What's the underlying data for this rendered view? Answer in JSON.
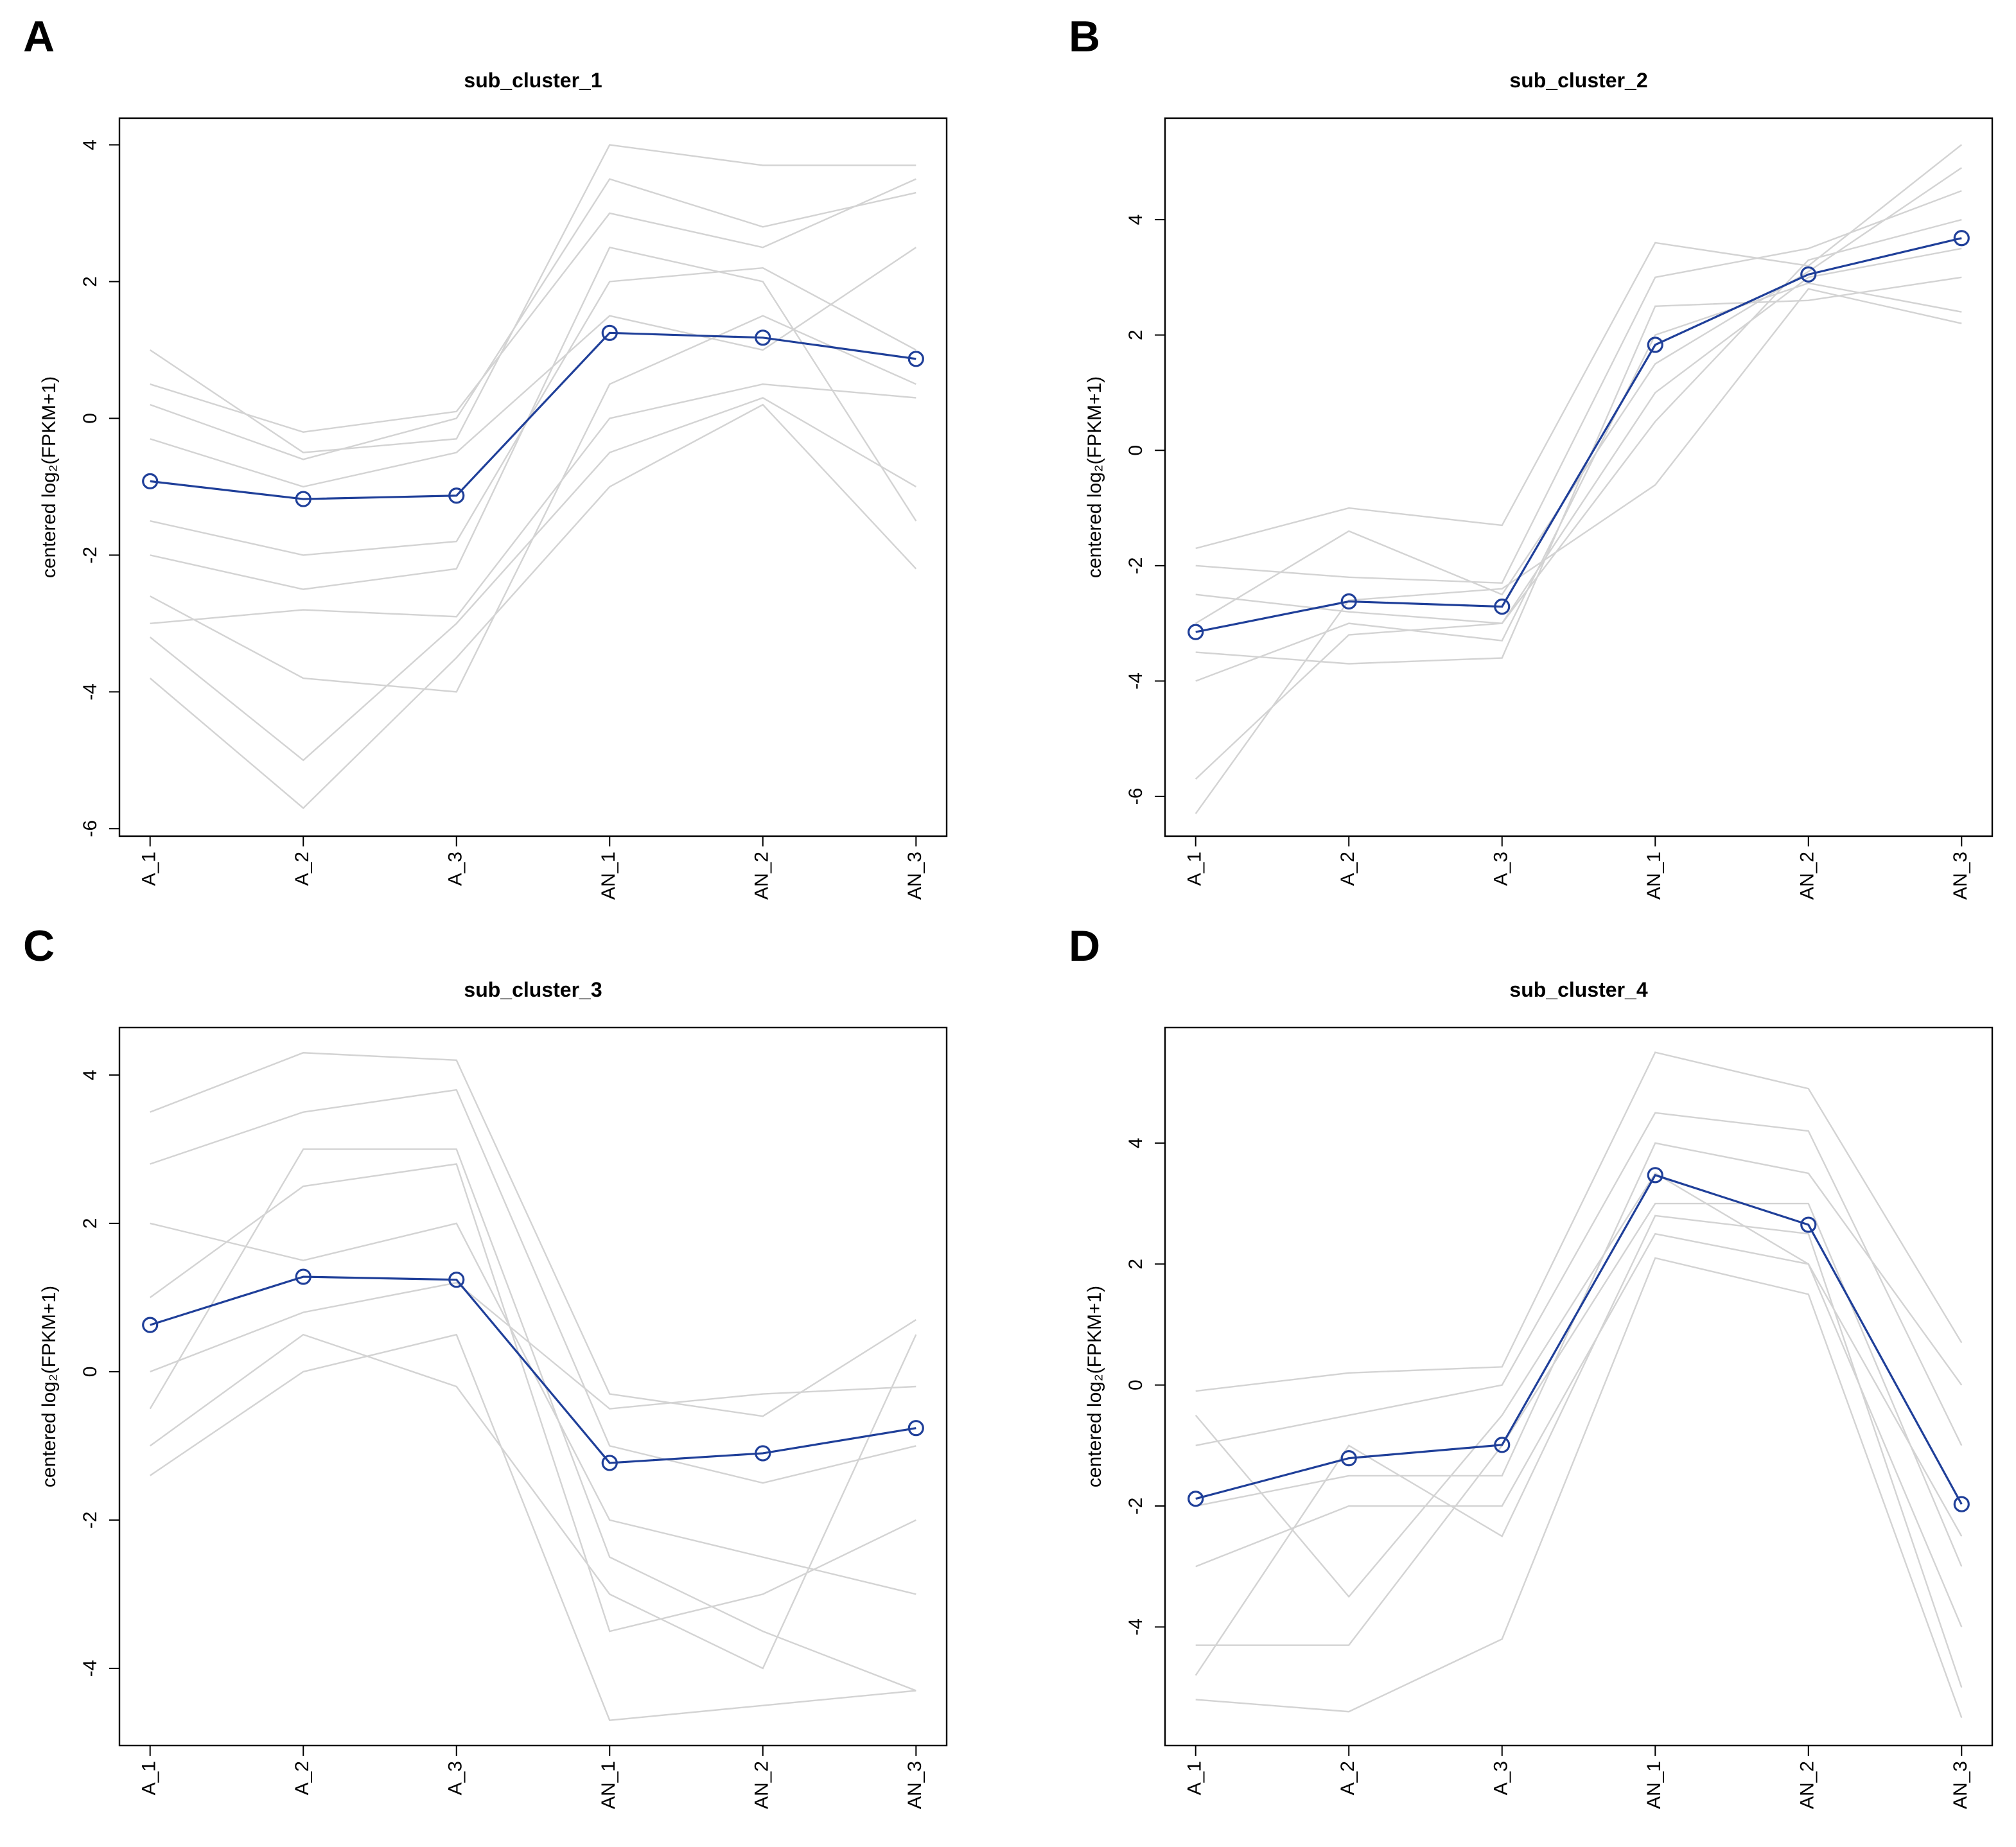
{
  "chart_data": [
    {
      "type": "line",
      "panel_label": "A",
      "title": "sub_cluster_1",
      "y_label": "centered log₂(FPKM+1)",
      "categories": [
        "A_1",
        "A_2",
        "A_3",
        "AN_1",
        "AN_2",
        "AN_3"
      ],
      "values": [
        -0.92,
        -1.18,
        -1.13,
        1.25,
        1.18,
        0.87
      ],
      "color": "#1f3f99",
      "gene_color": "#d3d3d3",
      "gene_lines": [
        [
          1.0,
          -0.5,
          -0.3,
          4.0,
          3.7,
          3.7
        ],
        [
          -3.8,
          -5.7,
          -3.5,
          -1.0,
          0.2,
          -2.2
        ],
        [
          -2.6,
          -3.8,
          -4.0,
          0.5,
          1.5,
          0.5
        ],
        [
          0.5,
          -0.2,
          0.1,
          3.0,
          2.5,
          3.5
        ],
        [
          -1.5,
          -2.0,
          -1.8,
          2.0,
          2.2,
          1.0
        ],
        [
          -3.0,
          -2.8,
          -2.9,
          0.0,
          0.5,
          0.3
        ],
        [
          -0.3,
          -1.0,
          -0.5,
          1.5,
          1.0,
          2.5
        ],
        [
          -2.0,
          -2.5,
          -2.2,
          2.5,
          2.0,
          -1.5
        ],
        [
          -3.2,
          -5.0,
          -3.0,
          -0.5,
          0.3,
          -1.0
        ],
        [
          0.2,
          -0.6,
          0.0,
          3.5,
          2.8,
          3.3
        ]
      ],
      "ylim": [
        -6.11,
        4.39
      ],
      "yticks": [
        -6,
        -4,
        -2,
        0,
        2,
        4
      ]
    },
    {
      "type": "line",
      "panel_label": "B",
      "title": "sub_cluster_2",
      "y_label": "centered log₂(FPKM+1)",
      "categories": [
        "A_1",
        "A_2",
        "A_3",
        "AN_1",
        "AN_2",
        "AN_3"
      ],
      "values": [
        -3.15,
        -2.62,
        -2.71,
        1.83,
        3.05,
        3.68
      ],
      "color": "#1f3f99",
      "gene_color": "#d3d3d3",
      "gene_lines": [
        [
          -1.7,
          -1.0,
          -1.3,
          3.6,
          3.2,
          5.3
        ],
        [
          -6.3,
          -2.6,
          -2.4,
          -0.6,
          2.8,
          2.2
        ],
        [
          -5.7,
          -3.2,
          -3.0,
          1.0,
          3.0,
          3.5
        ],
        [
          -2.0,
          -2.2,
          -2.3,
          3.0,
          3.5,
          4.5
        ],
        [
          -3.5,
          -3.7,
          -3.6,
          2.5,
          2.6,
          3.0
        ],
        [
          -2.5,
          -2.8,
          -3.0,
          0.5,
          3.3,
          4.0
        ],
        [
          -4.0,
          -3.0,
          -3.3,
          2.0,
          2.9,
          2.4
        ],
        [
          -3.0,
          -1.4,
          -2.5,
          1.5,
          3.1,
          4.9
        ]
      ],
      "ylim": [
        -6.69,
        5.76
      ],
      "yticks": [
        -6,
        -4,
        -2,
        0,
        2,
        4
      ]
    },
    {
      "type": "line",
      "panel_label": "C",
      "title": "sub_cluster_3",
      "y_label": "centered log₂(FPKM+1)",
      "categories": [
        "A_1",
        "A_2",
        "A_3",
        "AN_1",
        "AN_2",
        "AN_3"
      ],
      "values": [
        0.63,
        1.28,
        1.24,
        -1.23,
        -1.1,
        -0.76
      ],
      "color": "#1f3f99",
      "gene_color": "#d3d3d3",
      "gene_lines": [
        [
          3.5,
          4.3,
          4.2,
          -0.3,
          -0.6,
          0.7
        ],
        [
          -1.4,
          0.0,
          0.5,
          -4.7,
          -4.5,
          -4.3
        ],
        [
          2.8,
          3.5,
          3.8,
          -1.0,
          -1.5,
          -1.0
        ],
        [
          1.0,
          2.5,
          2.8,
          -3.5,
          -3.0,
          -2.0
        ],
        [
          -1.0,
          0.5,
          -0.2,
          -3.0,
          -4.0,
          0.5
        ],
        [
          2.0,
          1.5,
          2.0,
          -2.0,
          -2.5,
          -3.0
        ],
        [
          0.0,
          0.8,
          1.2,
          -0.5,
          -0.3,
          -0.2
        ],
        [
          -0.5,
          3.0,
          3.0,
          -2.5,
          -3.5,
          -4.3
        ]
      ],
      "ylim": [
        -5.04,
        4.64
      ],
      "yticks": [
        -4,
        -2,
        0,
        2,
        4
      ]
    },
    {
      "type": "line",
      "panel_label": "D",
      "title": "sub_cluster_4",
      "y_label": "centered log₂(FPKM+1)",
      "categories": [
        "A_1",
        "A_2",
        "A_3",
        "AN_1",
        "AN_2",
        "AN_3"
      ],
      "values": [
        -1.88,
        -1.21,
        -0.99,
        3.47,
        2.65,
        -1.97
      ],
      "color": "#1f3f99",
      "gene_color": "#d3d3d3",
      "gene_lines": [
        [
          -0.1,
          0.2,
          0.3,
          5.5,
          4.9,
          0.7
        ],
        [
          -5.2,
          -5.4,
          -4.2,
          2.1,
          1.5,
          -5.5
        ],
        [
          -4.3,
          -4.3,
          -1.0,
          3.0,
          3.0,
          -3.0
        ],
        [
          -1.0,
          -0.5,
          0.0,
          4.5,
          4.2,
          -1.0
        ],
        [
          -3.0,
          -2.0,
          -2.0,
          2.5,
          2.0,
          -4.0
        ],
        [
          -2.0,
          -1.5,
          -1.5,
          4.0,
          3.5,
          0.0
        ],
        [
          -0.5,
          -3.5,
          -0.5,
          3.5,
          2.0,
          -2.5
        ],
        [
          -4.8,
          -1.0,
          -2.5,
          2.8,
          2.5,
          -5.0
        ]
      ],
      "ylim": [
        -5.96,
        5.91
      ],
      "yticks": [
        -4,
        -2,
        0,
        2,
        4
      ]
    }
  ]
}
